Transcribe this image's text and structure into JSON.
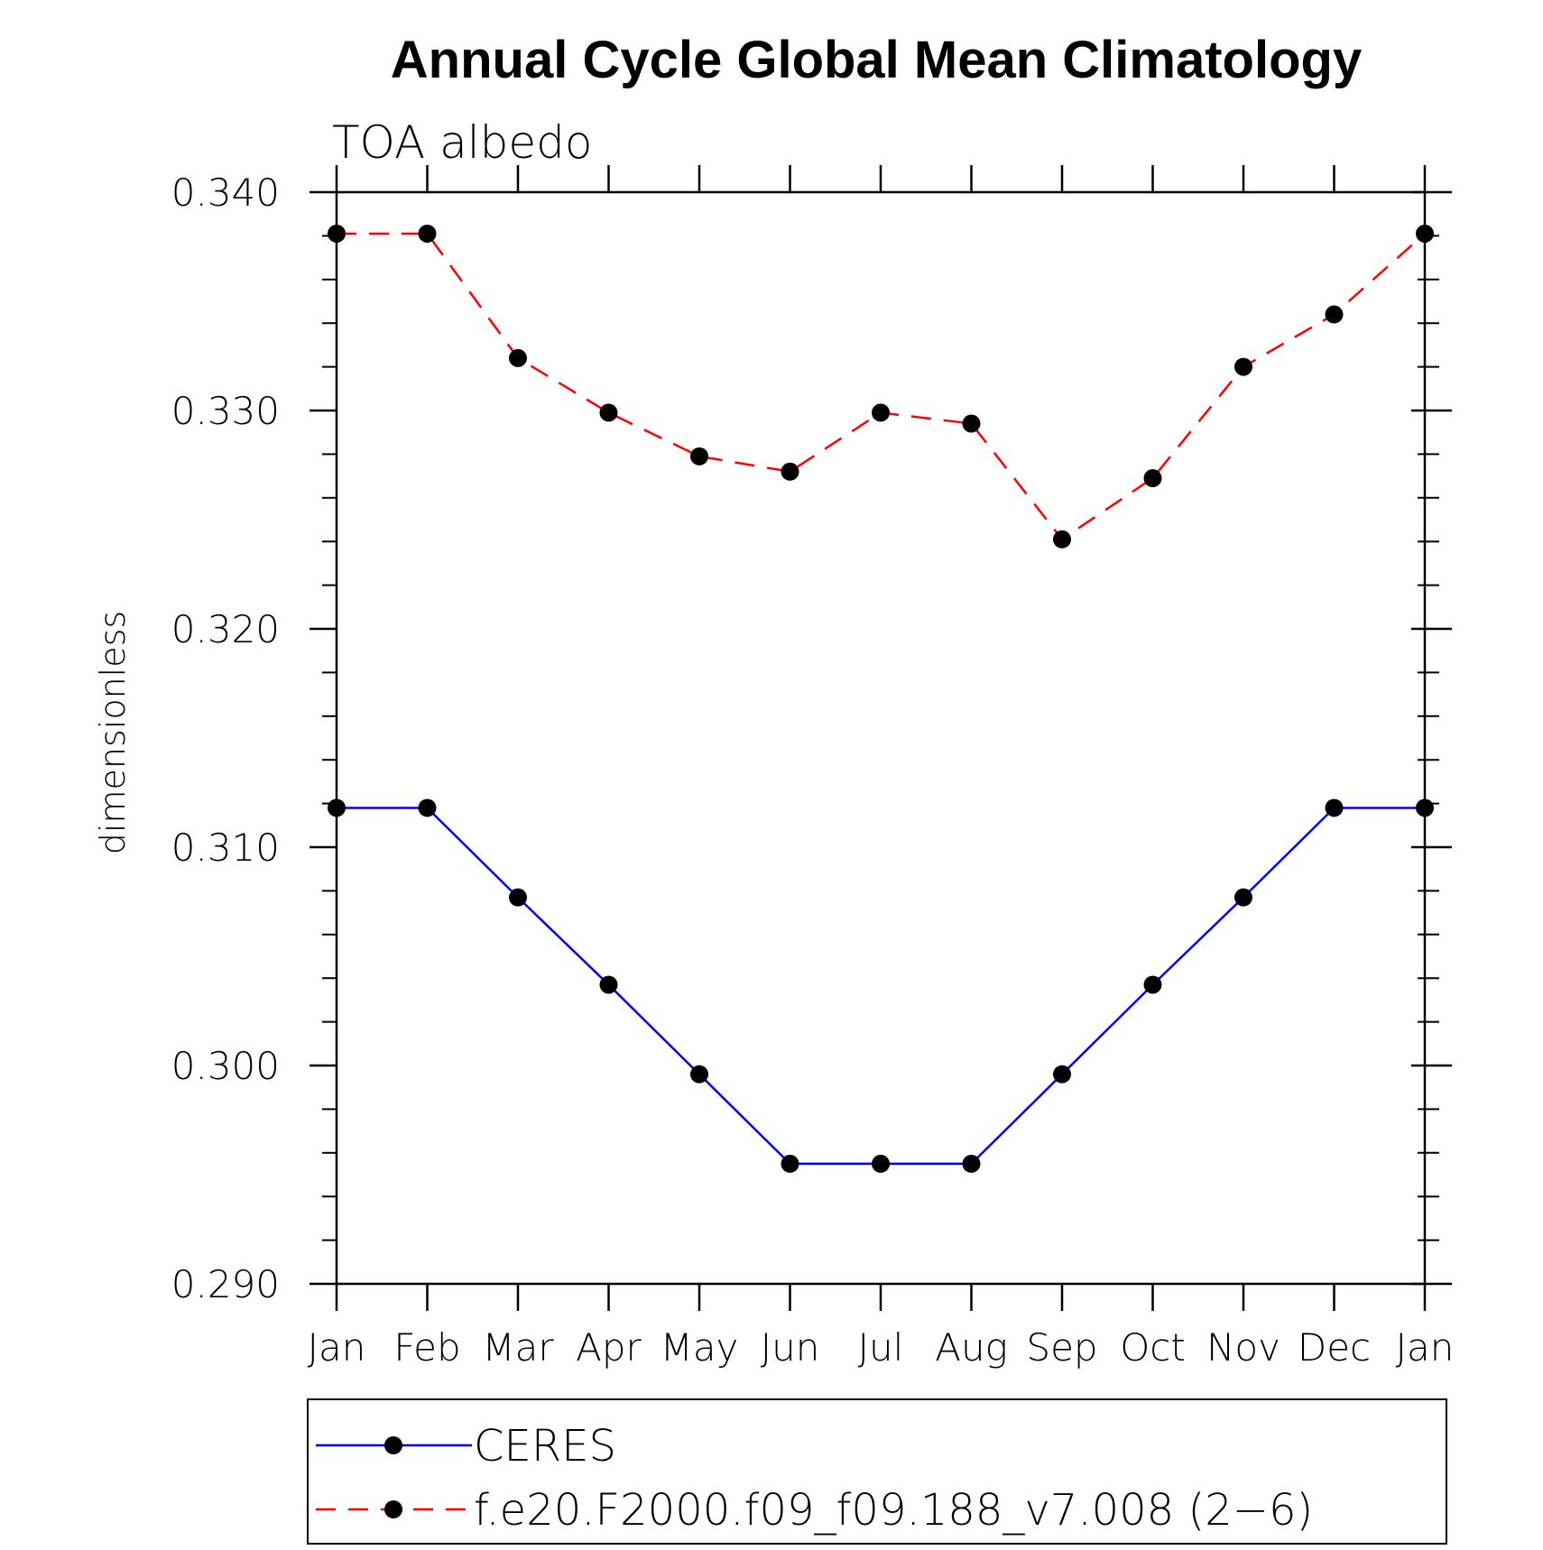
{
  "chart_data": {
    "type": "line",
    "title": "Annual Cycle Global Mean Climatology",
    "subtitle": "TOA albedo",
    "ylabel": "dimensionless",
    "xlabel": "",
    "categories": [
      "Jan",
      "Feb",
      "Mar",
      "Apr",
      "May",
      "Jun",
      "Jul",
      "Aug",
      "Sep",
      "Oct",
      "Nov",
      "Dec",
      "Jan"
    ],
    "ylim": [
      0.29,
      0.34
    ],
    "yticks": [
      "0.290",
      "0.300",
      "0.310",
      "0.320",
      "0.330",
      "0.340"
    ],
    "y_tick_values": [
      0.29,
      0.3,
      0.31,
      0.32,
      0.33,
      0.34
    ],
    "y_minor_step": 0.002,
    "grid": false,
    "legend_position": "bottom",
    "series": [
      {
        "name": "CERES",
        "color": "#0000ff",
        "line_style": "solid",
        "marker": "filled-circle",
        "values": [
          0.3118,
          0.3118,
          0.3077,
          0.3037,
          0.2996,
          0.2955,
          0.2955,
          0.2955,
          0.2996,
          0.3037,
          0.3077,
          0.3118,
          0.3118
        ]
      },
      {
        "name": "f.e20.F2000.f09_f09.188_v7.008 (2−6)",
        "color": "#ff0000",
        "line_style": "dashed",
        "marker": "filled-circle",
        "values": [
          0.3381,
          0.3381,
          0.3324,
          0.3299,
          0.3279,
          0.3272,
          0.3299,
          0.3294,
          0.3241,
          0.3269,
          0.332,
          0.3344,
          0.3381
        ]
      }
    ]
  }
}
